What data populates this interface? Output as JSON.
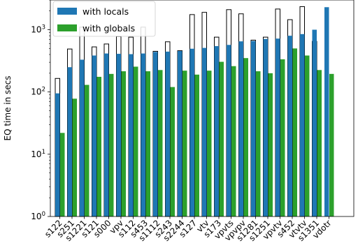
{
  "chart_data": {
    "type": "bar",
    "ylabel": "EQ time in secs",
    "xlabel": "",
    "yscale": "log",
    "ylim": [
      1,
      3000
    ],
    "y_ticks": [
      {
        "value": 1,
        "label": "10^0",
        "base": "10",
        "exp": "0"
      },
      {
        "value": 10,
        "label": "10^1",
        "base": "10",
        "exp": "1"
      },
      {
        "value": 100,
        "label": "10^2",
        "base": "10",
        "exp": "2"
      },
      {
        "value": 1000,
        "label": "10^3",
        "base": "10",
        "exp": "3"
      }
    ],
    "categories": [
      "s122",
      "s251",
      "s1221",
      "s121",
      "s000",
      "vpv",
      "s112",
      "s453",
      "s1112",
      "s243",
      "s2244",
      "s127",
      "vtv",
      "s173",
      "vpvts",
      "vpvpv",
      "s1281",
      "s1251",
      "vpvtv",
      "s452",
      "vtvtv",
      "s1351",
      "vdotr"
    ],
    "legend_position": "upper left",
    "series": [
      {
        "name": "with locals",
        "color": "#1f77b4",
        "values": [
          95,
          250,
          330,
          385,
          415,
          410,
          405,
          415,
          440,
          445,
          455,
          495,
          510,
          545,
          570,
          650,
          660,
          710,
          720,
          800,
          850,
          1000,
          2300
        ]
      },
      {
        "name": "with globals",
        "color": "#2ca02c",
        "values": [
          22,
          78,
          130,
          175,
          195,
          215,
          255,
          215,
          225,
          120,
          220,
          190,
          220,
          305,
          260,
          350,
          215,
          200,
          335,
          500,
          385,
          225,
          195
        ]
      },
      {
        "name": "",
        "color": "none",
        "style": "outline",
        "values": [
          165,
          490,
          1100,
          530,
          590,
          780,
          760,
          1100,
          450,
          640,
          460,
          1750,
          1900,
          760,
          2100,
          1800,
          680,
          760,
          2150,
          1450,
          2350,
          650,
          null
        ]
      }
    ]
  }
}
